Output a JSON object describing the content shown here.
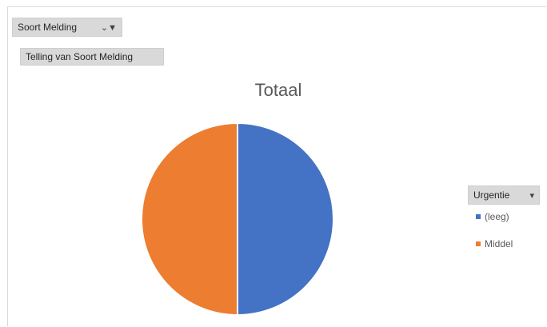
{
  "filter_field": {
    "label": "Soort Melding",
    "icon": "filter-icon"
  },
  "value_field": {
    "label": "Telling van Soort Melding"
  },
  "legend_field": {
    "label": "Urgentie",
    "icon": "dropdown-arrow-icon"
  },
  "colors": {
    "leeg": "#4472c4",
    "middel": "#ed7d31"
  },
  "chart_data": {
    "type": "pie",
    "title": "Totaal",
    "categories": [
      "(leeg)",
      "Middel"
    ],
    "values": [
      1,
      1
    ],
    "legend": "right"
  }
}
